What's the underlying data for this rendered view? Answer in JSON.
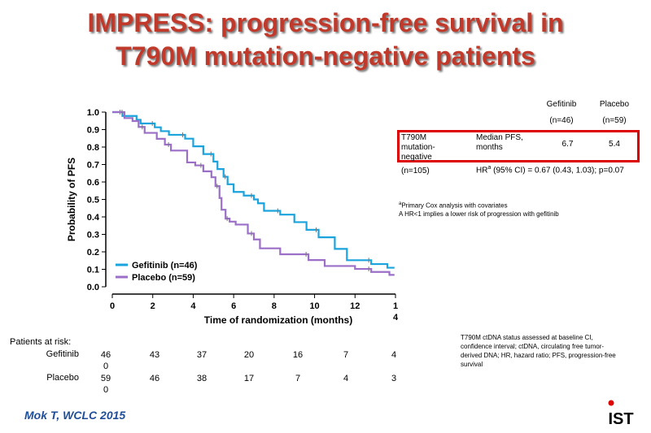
{
  "slide": {
    "title_line1": "IMPRESS: progression-free survival in",
    "title_line2": "T790M mutation-negative patients",
    "citation": "Mok T, WCLC 2015",
    "logo_text": "IST",
    "footnote": "T790M ctDNA status assessed at baseline CI, confidence interval; ctDNA, circulating free tumor-derived DNA; HR, hazard ratio; PFS, progression-free survival"
  },
  "table": {
    "col1_header": "Gefitinib",
    "col1_n": "(n=46)",
    "col2_header": "Placebo",
    "col2_n": "(n=59)",
    "group_label": "T790M mutation-negative",
    "group_n": "(n=105)",
    "row_label": "Median PFS, months",
    "gef_median": "6.7",
    "pla_median": "5.4",
    "hr_prefix": "HR",
    "hr_sup": "a",
    "hr_text": " (95% CI) = 0.67 (0.43, 1.03); p=0.07",
    "note_sup": "a",
    "note_line1": "Primary Cox analysis with covariates",
    "note_line2": "A HR<1 implies a lower risk of progression with gefitinib"
  },
  "risk": {
    "title": "Patients at risk:",
    "gefitinib_label": "Gefitinib",
    "placebo_label": "Placebo",
    "gefitinib": [
      "46\n0",
      "43",
      "37",
      "20",
      "16",
      "7",
      "4"
    ],
    "placebo": [
      "59\n0",
      "46",
      "38",
      "17",
      "7",
      "4",
      "3"
    ]
  },
  "chart_data": {
    "type": "line",
    "title": "",
    "xlabel": "Time of randomization (months)",
    "ylabel": "Probability of PFS",
    "xlim": [
      0,
      14
    ],
    "ylim": [
      0,
      1.0
    ],
    "x_ticks": [
      0,
      2,
      4,
      6,
      8,
      10,
      12,
      14
    ],
    "x_tick_labels": [
      "0",
      "2",
      "4",
      "6",
      "8",
      "10",
      "12",
      "1\n4"
    ],
    "y_ticks": [
      0,
      0.1,
      0.2,
      0.3,
      0.4,
      0.5,
      0.6,
      0.7,
      0.8,
      0.9,
      1.0
    ],
    "y_tick_labels": [
      "0.0",
      "0.1",
      "0.2",
      "0.3",
      "0.4",
      "0.5",
      "0.6",
      "0.7",
      "0.8",
      "0.9",
      "1.0"
    ],
    "grid": false,
    "legend": "bottom-left",
    "series": [
      {
        "name": "Gefitinib (n=46)",
        "color": "#1aa3dc",
        "step_x": [
          0,
          0.5,
          1.2,
          1.4,
          2.1,
          2.4,
          2.8,
          3.6,
          4.0,
          4.5,
          5.0,
          5.2,
          5.5,
          5.7,
          6.0,
          6.5,
          7.0,
          7.2,
          7.5,
          8.3,
          9.0,
          9.6,
          10.2,
          11.0,
          11.6,
          12.8,
          13.6
        ],
        "step_y": [
          1.0,
          0.978,
          0.956,
          0.935,
          0.913,
          0.891,
          0.87,
          0.848,
          0.804,
          0.76,
          0.717,
          0.674,
          0.63,
          0.587,
          0.543,
          0.522,
          0.5,
          0.478,
          0.435,
          0.413,
          0.37,
          0.326,
          0.283,
          0.217,
          0.152,
          0.13,
          0.109
        ]
      },
      {
        "name": "Placebo (n=59)",
        "color": "#9b6fc8",
        "step_x": [
          0,
          0.6,
          1.0,
          1.3,
          1.6,
          2.2,
          2.6,
          2.9,
          3.7,
          4.1,
          4.5,
          4.9,
          5.1,
          5.3,
          5.4,
          5.6,
          5.8,
          6.1,
          6.7,
          7.0,
          7.3,
          8.3,
          9.7,
          10.5,
          12.0,
          12.8,
          13.7
        ],
        "step_y": [
          1.0,
          0.966,
          0.949,
          0.915,
          0.881,
          0.847,
          0.814,
          0.78,
          0.712,
          0.695,
          0.661,
          0.627,
          0.576,
          0.508,
          0.441,
          0.39,
          0.373,
          0.356,
          0.305,
          0.271,
          0.22,
          0.186,
          0.153,
          0.119,
          0.102,
          0.085,
          0.068
        ]
      }
    ]
  }
}
